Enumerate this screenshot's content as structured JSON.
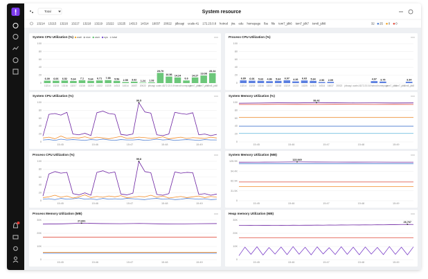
{
  "header": {
    "selector": "Total",
    "title": "System resource"
  },
  "tabs": {
    "items": [
      "13214",
      "13215",
      "13216",
      "13217",
      "13218",
      "13219",
      "13222",
      "13225",
      "14313",
      "14314",
      "16037",
      "20022",
      "jdbcagi",
      "ucale-41",
      "172.23.0.8",
      "hotrod",
      "jira",
      "edu",
      "homepage",
      "lba",
      "file",
      "tom7_jdk6",
      "tom7_jdk7",
      "tom8_jdk8"
    ],
    "count": 32,
    "status": [
      {
        "count": 25,
        "color": "#4a7bd0"
      },
      {
        "count": 0,
        "color": "#f5a623"
      },
      {
        "count": 0,
        "color": "#e04a3a"
      }
    ]
  },
  "panels": [
    {
      "type": "bar",
      "title": "System CPU Utilization (%)",
      "legend": [
        {
          "name": "wait",
          "color": "#f5a623"
        },
        {
          "name": "nice",
          "color": "#9b9b9b"
        },
        {
          "name": "user",
          "color": "#5cc26b"
        },
        {
          "name": "sys",
          "color": "#7b4fd0"
        },
        {
          "name": "total",
          "color": "#c0c0c0"
        }
      ],
      "categories": [
        "13214",
        "13215",
        "13216",
        "13217",
        "13218",
        "13219",
        "13222",
        "13225",
        "14313",
        "14314",
        "16037",
        "20022",
        "jdbcagi",
        "ucale-41",
        "172.23.0.8",
        "hotrod",
        "homepage",
        "tom7_jdk6",
        "tom7_jdk7",
        "tom8_jdk8"
      ],
      "values": [
        6.09,
        6.06,
        6.52,
        5.34,
        7.1,
        5.64,
        6.71,
        7.55,
        5.56,
        2.55,
        3.62,
        1.24,
        1.93,
        25.79,
        16.56,
        14.24,
        6.6,
        14.27,
        19.08,
        25.24
      ],
      "color": "#6cc77a",
      "ylim": [
        0,
        100
      ],
      "yticks": [
        0,
        20,
        40,
        60,
        80,
        100
      ],
      "grid": true
    },
    {
      "type": "bar",
      "title": "Process CPU Utilization (%)",
      "categories": [
        "13214",
        "13215",
        "13216",
        "13217",
        "13218",
        "13219",
        "13222",
        "13225",
        "14313",
        "14314",
        "16037",
        "20022",
        "jdbcagi",
        "ucale-41",
        "172.23.0.8",
        "hotrod",
        "homepage",
        "tom7_jdk6",
        "tom7_jdk7",
        "tom8_jdk8"
      ],
      "values": [
        6.89,
        6.06,
        5.63,
        4.86,
        5.64,
        6.97,
        4.26,
        6.63,
        5.64,
        2.56,
        2.99,
        null,
        null,
        null,
        null,
        4.97,
        3.75,
        null,
        null,
        3.34
      ],
      "color": "#5b7fe0",
      "ylim": [
        0,
        100
      ],
      "yticks": [
        0,
        20,
        40,
        60,
        80,
        100
      ],
      "grid": true
    },
    {
      "type": "line",
      "title": "System CPU Utilization (%)",
      "xticks": [
        "15:45",
        "15:46",
        "15:47",
        "15:48",
        "15:49"
      ],
      "ylim": [
        0,
        100
      ],
      "yticks": [
        0,
        20,
        40,
        60,
        80,
        100
      ],
      "grid": true,
      "series": [
        {
          "color": "#6a1fa0",
          "values": [
            15,
            70,
            72,
            68,
            75,
            20,
            18,
            22,
            16,
            74,
            78,
            72,
            70,
            19,
            17,
            20,
            99.5,
            76,
            73,
            18,
            16,
            20,
            75,
            72,
            70,
            74,
            18,
            20,
            16,
            19
          ]
        },
        {
          "color": "#f28c28",
          "values": [
            10,
            12,
            8,
            15,
            9,
            11,
            10,
            13,
            9,
            12,
            10,
            8,
            11,
            14,
            9,
            10,
            12,
            11,
            9,
            10,
            13,
            8,
            10,
            12,
            9,
            11,
            10,
            9,
            12,
            10
          ]
        },
        {
          "color": "#4a7bd0",
          "values": [
            5,
            6,
            4,
            7,
            5,
            6,
            5,
            4,
            6,
            5,
            7,
            5,
            4,
            6,
            5,
            5,
            6,
            4,
            5,
            7,
            5,
            6,
            4,
            5,
            6,
            5,
            4,
            6,
            5,
            5
          ]
        }
      ]
    },
    {
      "type": "line",
      "title": "System Memory Utilization (%)",
      "xticks": [
        "15:45",
        "15:46",
        "15:47",
        "15:48",
        "15:49"
      ],
      "ylim": [
        0,
        100
      ],
      "yticks": [
        0,
        20,
        40,
        60,
        80,
        100
      ],
      "grid": true,
      "series": [
        {
          "color": "#6a1fa0",
          "values": [
            98,
            98.5,
            99,
            98.8,
            99.42,
            99,
            98.7,
            98.9,
            98.6,
            98.8
          ]
        },
        {
          "color": "#e04a3a",
          "values": [
            95,
            95,
            95.2,
            95.1,
            95,
            95.3,
            95.2,
            95,
            95.1,
            95
          ]
        },
        {
          "color": "#f28c28",
          "values": [
            62,
            62,
            62,
            62,
            62,
            62,
            62,
            62,
            62,
            62
          ]
        },
        {
          "color": "#4a7bd0",
          "values": [
            40,
            40,
            40,
            40,
            40,
            40,
            40,
            40,
            40,
            40
          ]
        },
        {
          "color": "#7fc8e8",
          "values": [
            22,
            22,
            22,
            22,
            22,
            22,
            22,
            22,
            22,
            22
          ]
        }
      ]
    },
    {
      "type": "line",
      "title": "Process CPU Utilization (%)",
      "xticks": [
        "15:45",
        "15:46",
        "15:47",
        "15:48",
        "15:49"
      ],
      "ylim": [
        0,
        100
      ],
      "yticks": [
        0,
        20,
        40,
        60,
        80,
        100
      ],
      "grid": true,
      "series": [
        {
          "color": "#6a1fa0",
          "values": [
            12,
            68,
            74,
            70,
            72,
            18,
            15,
            20,
            14,
            72,
            76,
            70,
            73,
            17,
            15,
            19,
            99.8,
            74,
            71,
            16,
            14,
            18,
            73,
            70,
            72,
            71,
            16,
            18,
            14,
            17
          ]
        },
        {
          "color": "#f28c28",
          "values": [
            8,
            10,
            14,
            9,
            12,
            7,
            10,
            15,
            8,
            11,
            9,
            12,
            10,
            13,
            8,
            9,
            11,
            10,
            14,
            9,
            12,
            7,
            9,
            11,
            8,
            10,
            12,
            8,
            11,
            9
          ]
        },
        {
          "color": "#4a7bd0",
          "values": [
            4,
            5,
            3,
            6,
            4,
            5,
            7,
            4,
            5,
            3,
            6,
            4,
            5,
            4,
            6,
            5,
            4,
            3,
            5,
            6,
            4,
            5,
            3,
            4,
            6,
            5,
            4,
            5,
            3,
            4
          ]
        }
      ]
    },
    {
      "type": "line",
      "title": "System Memory Utilization (MB)",
      "xticks": [
        "15:45",
        "15:46",
        "15:47",
        "15:48",
        "15:49"
      ],
      "ylim": [
        0,
        125900
      ],
      "yticks": [
        0,
        {
          "value": 31475,
          "label": "31.5K"
        },
        {
          "value": 62950,
          "label": "62.9K"
        },
        {
          "value": 94425,
          "label": "94.4K"
        },
        {
          "value": 125900,
          "label": "125.9K"
        }
      ],
      "grid": true,
      "series": [
        {
          "color": "#6a1fa0",
          "values": [
            123000,
            123200,
            123500,
            123949,
            123600,
            123400,
            123300,
            123500,
            123200,
            123100
          ],
          "value_labels": [
            null,
            null,
            null,
            "123,949",
            null,
            null,
            null,
            null,
            null,
            null
          ]
        },
        {
          "color": "#4a7bd0",
          "values": [
            118000,
            118000,
            118000,
            118000,
            118000,
            118000,
            118000,
            118000,
            118000,
            118000
          ]
        },
        {
          "color": "#e04a3a",
          "values": [
            60000,
            60000,
            60000,
            60000,
            60000,
            60000,
            60000,
            60000,
            60000,
            60000
          ]
        },
        {
          "color": "#f28c28",
          "values": [
            45000,
            45000,
            45000,
            45000,
            45000,
            45000,
            45000,
            45000,
            45000,
            45000
          ]
        }
      ]
    },
    {
      "type": "line",
      "title": "Process Memory Utilization (MB)",
      "xticks": [
        "15:45",
        "15:46",
        "15:47",
        "15:48",
        "15:49"
      ],
      "ylim": [
        0,
        30000
      ],
      "yticks": [
        0,
        {
          "value": 10000,
          "label": "10K"
        },
        {
          "value": 20000,
          "label": "20K"
        },
        {
          "value": 30000,
          "label": "30K"
        }
      ],
      "grid": true,
      "series": [
        {
          "color": "#6a1fa0",
          "values": [
            27000,
            27200,
            27691,
            27400,
            27300,
            27500,
            27200,
            27100,
            27300,
            27400
          ],
          "value_labels": [
            null,
            null,
            "27,691",
            null,
            null,
            null,
            null,
            null,
            null,
            null
          ]
        },
        {
          "color": "#e04a3a",
          "values": [
            17000,
            17000,
            17000,
            17000,
            17000,
            17000,
            17000,
            17000,
            17000,
            17000
          ]
        },
        {
          "color": "#f28c28",
          "values": [
            5500,
            5500,
            5500,
            5500,
            5500,
            5500,
            5500,
            5500,
            5500,
            5500
          ]
        },
        {
          "color": "#4a7bd0",
          "values": [
            4800,
            4800,
            4800,
            4800,
            4800,
            4800,
            4800,
            4800,
            4800,
            4800
          ]
        }
      ]
    },
    {
      "type": "line",
      "title": "Heap memory Utilization (MB)",
      "xticks": [
        "15:45",
        "15:46",
        "15:47",
        "15:48",
        "15:49"
      ],
      "ylim": [
        0,
        30000
      ],
      "yticks": [
        0,
        {
          "value": 10000,
          "label": "10K"
        },
        {
          "value": 20000,
          "label": "20K"
        },
        {
          "value": 30000,
          "label": "30K"
        }
      ],
      "grid": true,
      "series": [
        {
          "color": "#6a1fa0",
          "values": [
            26000,
            26050,
            26100,
            26000,
            26080,
            26120,
            26000,
            26100,
            26050,
            26150,
            26100,
            26200,
            26150,
            26250,
            26200,
            26300,
            26250,
            26350,
            26300,
            26400,
            26350,
            26450,
            26400,
            26500,
            26450,
            26550,
            26600,
            26700,
            26767,
            26700
          ],
          "value_labels": [
            null,
            null,
            null,
            null,
            null,
            null,
            null,
            null,
            null,
            null,
            null,
            null,
            null,
            null,
            null,
            null,
            null,
            null,
            null,
            null,
            null,
            null,
            null,
            null,
            null,
            null,
            null,
            null,
            "26,767",
            null
          ]
        },
        {
          "color": "#e04a3a",
          "values": [
            16500,
            16500,
            16500,
            16500,
            16500,
            16500,
            16500,
            16500,
            16500,
            16500,
            16500,
            16500,
            16500,
            16500,
            16500,
            16500,
            16500,
            16500,
            16500,
            16500,
            16500,
            16500,
            16500,
            16500,
            16500,
            16500,
            16500,
            16500,
            16500,
            16500
          ]
        },
        {
          "color": "#7b3fc8",
          "values": [
            3000,
            9500,
            4000,
            9800,
            3500,
            9200,
            4200,
            9600,
            3800,
            9900,
            4100,
            9400,
            3600,
            9700,
            4300,
            9100,
            3900,
            9800,
            4000,
            9500,
            3700,
            9600,
            4200,
            9300,
            3800,
            9900,
            4000,
            9500,
            3600,
            9700
          ]
        }
      ]
    }
  ]
}
